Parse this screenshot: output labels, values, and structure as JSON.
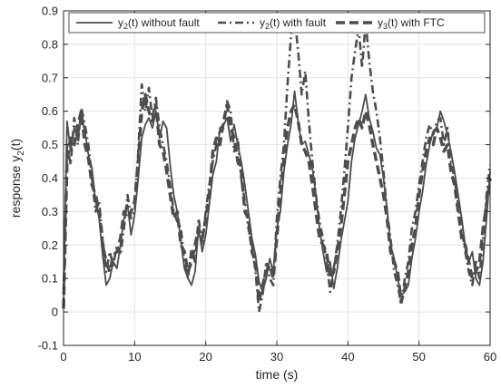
{
  "chart_data": {
    "type": "line",
    "xlabel": "time (s)",
    "ylabel": "response y",
    "ylabel_sub": "2",
    "ylabel_tail": "(t)",
    "xlim": [
      0,
      60
    ],
    "ylim": [
      -0.1,
      0.9
    ],
    "xticks": [
      "0",
      "10",
      "20",
      "30",
      "40",
      "50",
      "60"
    ],
    "yticks": [
      "-0.1",
      "0",
      "0.1",
      "0.2",
      "0.3",
      "0.4",
      "0.5",
      "0.6",
      "0.7",
      "0.8",
      "0.9"
    ],
    "grid": true,
    "legend_position": "top",
    "series": [
      {
        "name": "y2(t) without fault",
        "legend": {
          "pre": "y",
          "sub": "2",
          "post": "(t) without fault"
        },
        "style": "solid",
        "color": "#4d4d4d",
        "x": [
          0,
          0.5,
          1,
          1.5,
          2,
          2.5,
          3,
          3.5,
          4,
          4.5,
          5,
          5.5,
          6,
          6.5,
          7,
          7.5,
          8,
          8.5,
          9,
          9.5,
          10,
          10.5,
          11,
          11.5,
          12,
          12.5,
          13,
          13.5,
          14,
          14.5,
          15,
          15.5,
          16,
          16.5,
          17,
          17.5,
          18,
          18.5,
          19,
          19.5,
          20,
          20.5,
          21,
          21.5,
          22,
          22.5,
          23,
          23.5,
          24,
          24.5,
          25,
          25.5,
          26,
          26.5,
          27,
          27.5,
          28,
          28.5,
          29,
          29.5,
          30,
          30.5,
          31,
          31.5,
          32,
          32.5,
          33,
          33.5,
          34,
          34.5,
          35,
          35.5,
          36,
          36.5,
          37,
          37.5,
          38,
          38.5,
          39,
          39.5,
          40,
          40.5,
          41,
          41.5,
          42,
          42.5,
          43,
          43.5,
          44,
          44.5,
          45,
          45.5,
          46,
          46.5,
          47,
          47.5,
          48,
          48.5,
          49,
          49.5,
          50,
          50.5,
          51,
          51.5,
          52,
          52.5,
          53,
          53.5,
          54,
          54.5,
          55,
          55.5,
          56,
          56.5,
          57,
          57.5,
          58,
          58.5,
          59,
          59.5,
          60
        ],
        "y": [
          0.05,
          0.57,
          0.48,
          0.55,
          0.52,
          0.58,
          0.54,
          0.47,
          0.43,
          0.33,
          0.28,
          0.17,
          0.08,
          0.1,
          0.15,
          0.13,
          0.2,
          0.28,
          0.32,
          0.23,
          0.29,
          0.4,
          0.52,
          0.56,
          0.58,
          0.55,
          0.6,
          0.52,
          0.57,
          0.55,
          0.44,
          0.35,
          0.3,
          0.21,
          0.13,
          0.1,
          0.08,
          0.12,
          0.25,
          0.18,
          0.23,
          0.32,
          0.41,
          0.45,
          0.55,
          0.56,
          0.58,
          0.51,
          0.56,
          0.5,
          0.45,
          0.38,
          0.3,
          0.22,
          0.17,
          0.09,
          0.06,
          0.1,
          0.16,
          0.12,
          0.25,
          0.3,
          0.42,
          0.5,
          0.56,
          0.66,
          0.57,
          0.5,
          0.51,
          0.47,
          0.43,
          0.35,
          0.25,
          0.18,
          0.12,
          0.15,
          0.07,
          0.13,
          0.21,
          0.27,
          0.33,
          0.45,
          0.52,
          0.56,
          0.6,
          0.65,
          0.58,
          0.54,
          0.49,
          0.47,
          0.4,
          0.31,
          0.2,
          0.16,
          0.1,
          0.05,
          0.06,
          0.08,
          0.16,
          0.22,
          0.3,
          0.36,
          0.44,
          0.5,
          0.54,
          0.55,
          0.6,
          0.57,
          0.53,
          0.48,
          0.42,
          0.35,
          0.28,
          0.2,
          0.15,
          0.18,
          0.1,
          0.08,
          0.15,
          0.28,
          0.42
        ]
      },
      {
        "name": "y2(t) with fault",
        "legend": {
          "pre": "y",
          "sub": "2",
          "post": "(t) with fault"
        },
        "style": "dashdot",
        "color": "#4d4d4d",
        "x": [
          0,
          0.5,
          1,
          1.5,
          2,
          2.5,
          3,
          3.5,
          4,
          4.5,
          5,
          5.5,
          6,
          6.5,
          7,
          7.5,
          8,
          8.5,
          9,
          9.5,
          10,
          10.5,
          11,
          11.5,
          12,
          12.5,
          13,
          13.5,
          14,
          14.5,
          15,
          15.5,
          16,
          16.5,
          17,
          17.5,
          18,
          18.5,
          19,
          19.5,
          20,
          20.5,
          21,
          21.5,
          22,
          22.5,
          23,
          23.5,
          24,
          24.5,
          25,
          25.5,
          26,
          26.5,
          27,
          27.5,
          28,
          28.5,
          29,
          29.5,
          30,
          30.5,
          31,
          31.5,
          32,
          32.5,
          33,
          33.5,
          34,
          34.5,
          35,
          35.5,
          36,
          36.5,
          37,
          37.5,
          38,
          38.5,
          39,
          39.5,
          40,
          40.5,
          41,
          41.5,
          42,
          42.5,
          43,
          43.5,
          44,
          44.5,
          45,
          45.5,
          46,
          46.5,
          47,
          47.5,
          48,
          48.5,
          49,
          49.5,
          50,
          50.5,
          51,
          51.5,
          52,
          52.5,
          53,
          53.5,
          54,
          54.5,
          55,
          55.5,
          56,
          56.5,
          57,
          57.5,
          58,
          58.5,
          59,
          59.5,
          60
        ],
        "y": [
          0.02,
          0.5,
          0.44,
          0.58,
          0.5,
          0.61,
          0.56,
          0.5,
          0.4,
          0.3,
          0.33,
          0.22,
          0.12,
          0.18,
          0.14,
          0.2,
          0.17,
          0.25,
          0.35,
          0.28,
          0.3,
          0.48,
          0.68,
          0.6,
          0.67,
          0.58,
          0.64,
          0.55,
          0.5,
          0.45,
          0.38,
          0.3,
          0.27,
          0.25,
          0.15,
          0.1,
          0.19,
          0.15,
          0.28,
          0.2,
          0.3,
          0.38,
          0.45,
          0.5,
          0.54,
          0.55,
          0.63,
          0.6,
          0.48,
          0.52,
          0.4,
          0.33,
          0.25,
          0.2,
          0.12,
          0.0,
          0.05,
          0.15,
          0.1,
          0.08,
          0.28,
          0.4,
          0.5,
          0.68,
          0.83,
          0.88,
          0.78,
          0.65,
          0.72,
          0.57,
          0.45,
          0.35,
          0.27,
          0.22,
          0.15,
          0.06,
          0.13,
          0.2,
          0.3,
          0.42,
          0.55,
          0.7,
          0.78,
          0.85,
          0.73,
          0.87,
          0.75,
          0.66,
          0.6,
          0.52,
          0.42,
          0.3,
          0.22,
          0.12,
          0.08,
          0.02,
          0.1,
          0.15,
          0.25,
          0.3,
          0.38,
          0.45,
          0.52,
          0.56,
          0.53,
          0.57,
          0.58,
          0.5,
          0.55,
          0.45,
          0.4,
          0.32,
          0.25,
          0.18,
          0.12,
          0.08,
          0.15,
          0.1,
          0.22,
          0.35,
          0.44
        ]
      },
      {
        "name": "y3(t) with FTC",
        "legend": {
          "pre": "y",
          "sub": "3",
          "post": "(t) with FTC"
        },
        "style": "dashed",
        "color": "#4d4d4d",
        "x": [
          0,
          0.5,
          1,
          1.5,
          2,
          2.5,
          3,
          3.5,
          4,
          4.5,
          5,
          5.5,
          6,
          6.5,
          7,
          7.5,
          8,
          8.5,
          9,
          9.5,
          10,
          10.5,
          11,
          11.5,
          12,
          12.5,
          13,
          13.5,
          14,
          14.5,
          15,
          15.5,
          16,
          16.5,
          17,
          17.5,
          18,
          18.5,
          19,
          19.5,
          20,
          20.5,
          21,
          21.5,
          22,
          22.5,
          23,
          23.5,
          24,
          24.5,
          25,
          25.5,
          26,
          26.5,
          27,
          27.5,
          28,
          28.5,
          29,
          29.5,
          30,
          30.5,
          31,
          31.5,
          32,
          32.5,
          33,
          33.5,
          34,
          34.5,
          35,
          35.5,
          36,
          36.5,
          37,
          37.5,
          38,
          38.5,
          39,
          39.5,
          40,
          40.5,
          41,
          41.5,
          42,
          42.5,
          43,
          43.5,
          44,
          44.5,
          45,
          45.5,
          46,
          46.5,
          47,
          47.5,
          48,
          48.5,
          49,
          49.5,
          50,
          50.5,
          51,
          51.5,
          52,
          52.5,
          53,
          53.5,
          54,
          54.5,
          55,
          55.5,
          56,
          56.5,
          57,
          57.5,
          58,
          58.5,
          59,
          59.5,
          60
        ],
        "y": [
          0.01,
          0.45,
          0.52,
          0.5,
          0.56,
          0.6,
          0.5,
          0.46,
          0.38,
          0.35,
          0.3,
          0.2,
          0.15,
          0.12,
          0.17,
          0.18,
          0.22,
          0.3,
          0.28,
          0.3,
          0.33,
          0.45,
          0.6,
          0.65,
          0.6,
          0.57,
          0.62,
          0.5,
          0.48,
          0.42,
          0.35,
          0.28,
          0.3,
          0.2,
          0.18,
          0.12,
          0.15,
          0.2,
          0.25,
          0.22,
          0.28,
          0.35,
          0.48,
          0.52,
          0.5,
          0.57,
          0.62,
          0.55,
          0.52,
          0.45,
          0.42,
          0.3,
          0.28,
          0.18,
          0.15,
          0.03,
          0.08,
          0.12,
          0.14,
          0.1,
          0.22,
          0.35,
          0.46,
          0.55,
          0.6,
          0.62,
          0.57,
          0.5,
          0.48,
          0.45,
          0.38,
          0.3,
          0.22,
          0.2,
          0.18,
          0.1,
          0.12,
          0.18,
          0.25,
          0.35,
          0.45,
          0.5,
          0.55,
          0.58,
          0.55,
          0.6,
          0.56,
          0.5,
          0.45,
          0.4,
          0.35,
          0.28,
          0.18,
          0.15,
          0.12,
          0.03,
          0.07,
          0.12,
          0.2,
          0.25,
          0.35,
          0.42,
          0.48,
          0.52,
          0.5,
          0.55,
          0.52,
          0.48,
          0.5,
          0.42,
          0.38,
          0.3,
          0.22,
          0.2,
          0.15,
          0.1,
          0.12,
          0.15,
          0.25,
          0.32,
          0.4
        ]
      }
    ]
  }
}
